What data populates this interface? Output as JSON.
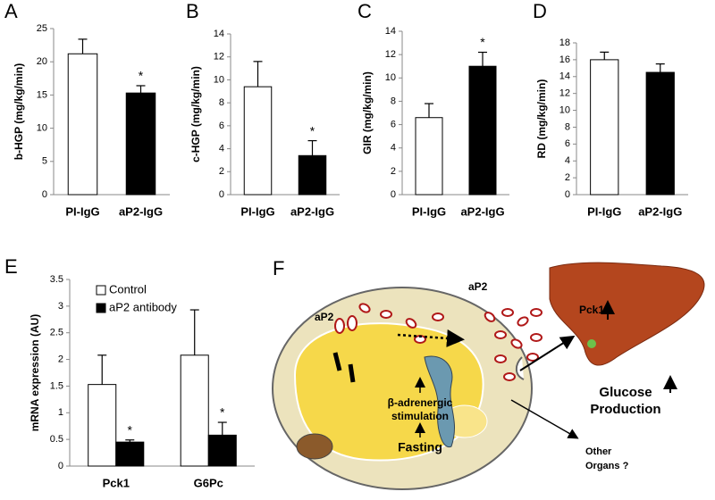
{
  "chart_data": [
    {
      "type": "bar",
      "label": "A",
      "y_label": "b-HGP (mg/kg/min)",
      "categories": [
        "PI-IgG",
        "aP2-IgG"
      ],
      "values": [
        21.2,
        15.3
      ],
      "errors": [
        2.2,
        1.1
      ],
      "colors": [
        "#ffffff",
        "#000000"
      ],
      "significance": [
        null,
        "*"
      ],
      "ylim": [
        0,
        25
      ],
      "yticks": [
        0,
        5,
        10,
        15,
        20,
        25
      ]
    },
    {
      "type": "bar",
      "label": "B",
      "y_label": "c-HGP (mg/kg/min)",
      "categories": [
        "PI-IgG",
        "aP2-IgG"
      ],
      "values": [
        9.4,
        3.4
      ],
      "errors": [
        2.2,
        1.3
      ],
      "colors": [
        "#ffffff",
        "#000000"
      ],
      "significance": [
        null,
        "*"
      ],
      "ylim": [
        0,
        14
      ],
      "yticks": [
        0,
        2,
        4,
        6,
        8,
        10,
        12,
        14
      ]
    },
    {
      "type": "bar",
      "label": "C",
      "y_label": "GIR (mg/kg/min)",
      "categories": [
        "PI-IgG",
        "aP2-IgG"
      ],
      "values": [
        6.6,
        11.0
      ],
      "errors": [
        1.2,
        1.2
      ],
      "colors": [
        "#ffffff",
        "#000000"
      ],
      "significance": [
        null,
        "*"
      ],
      "ylim": [
        0,
        14
      ],
      "yticks": [
        0,
        2,
        4,
        6,
        8,
        10,
        12,
        14
      ]
    },
    {
      "type": "bar",
      "label": "D",
      "y_label": "RD (mg/kg/min)",
      "categories": [
        "PI-IgG",
        "aP2-IgG"
      ],
      "values": [
        16.0,
        14.5
      ],
      "errors": [
        0.9,
        1.0
      ],
      "colors": [
        "#ffffff",
        "#000000"
      ],
      "significance": [
        null,
        null
      ],
      "ylim": [
        0,
        18
      ],
      "yticks": [
        0,
        2,
        4,
        6,
        8,
        10,
        12,
        14,
        16,
        18
      ]
    },
    {
      "type": "grouped_bar",
      "label": "E",
      "y_label": "mRNA expression (AU)",
      "categories": [
        "Pck1",
        "G6Pc"
      ],
      "series": [
        {
          "name": "Control",
          "color": "#ffffff",
          "values": [
            1.53,
            2.08
          ],
          "errors": [
            0.55,
            0.85
          ],
          "significance": [
            null,
            null
          ]
        },
        {
          "name": "aP2 antibody",
          "color": "#000000",
          "values": [
            0.45,
            0.58
          ],
          "errors": [
            0.04,
            0.24
          ],
          "significance": [
            "*",
            "*"
          ]
        }
      ],
      "ylim": [
        0,
        3.5
      ],
      "yticks": [
        0,
        0.5,
        1,
        1.5,
        2,
        2.5,
        3,
        3.5
      ],
      "legend": "top-left"
    }
  ],
  "diagram": {
    "label": "F",
    "cell_ap2": "aP2",
    "outer_ap2": "aP2",
    "liver_gene": "Pck1",
    "output": [
      "Glucose",
      "Production"
    ],
    "stimulus": [
      "β-adrenergic",
      "stimulation"
    ],
    "trigger": "Fasting",
    "other": [
      "Other",
      "Organs ?"
    ]
  }
}
